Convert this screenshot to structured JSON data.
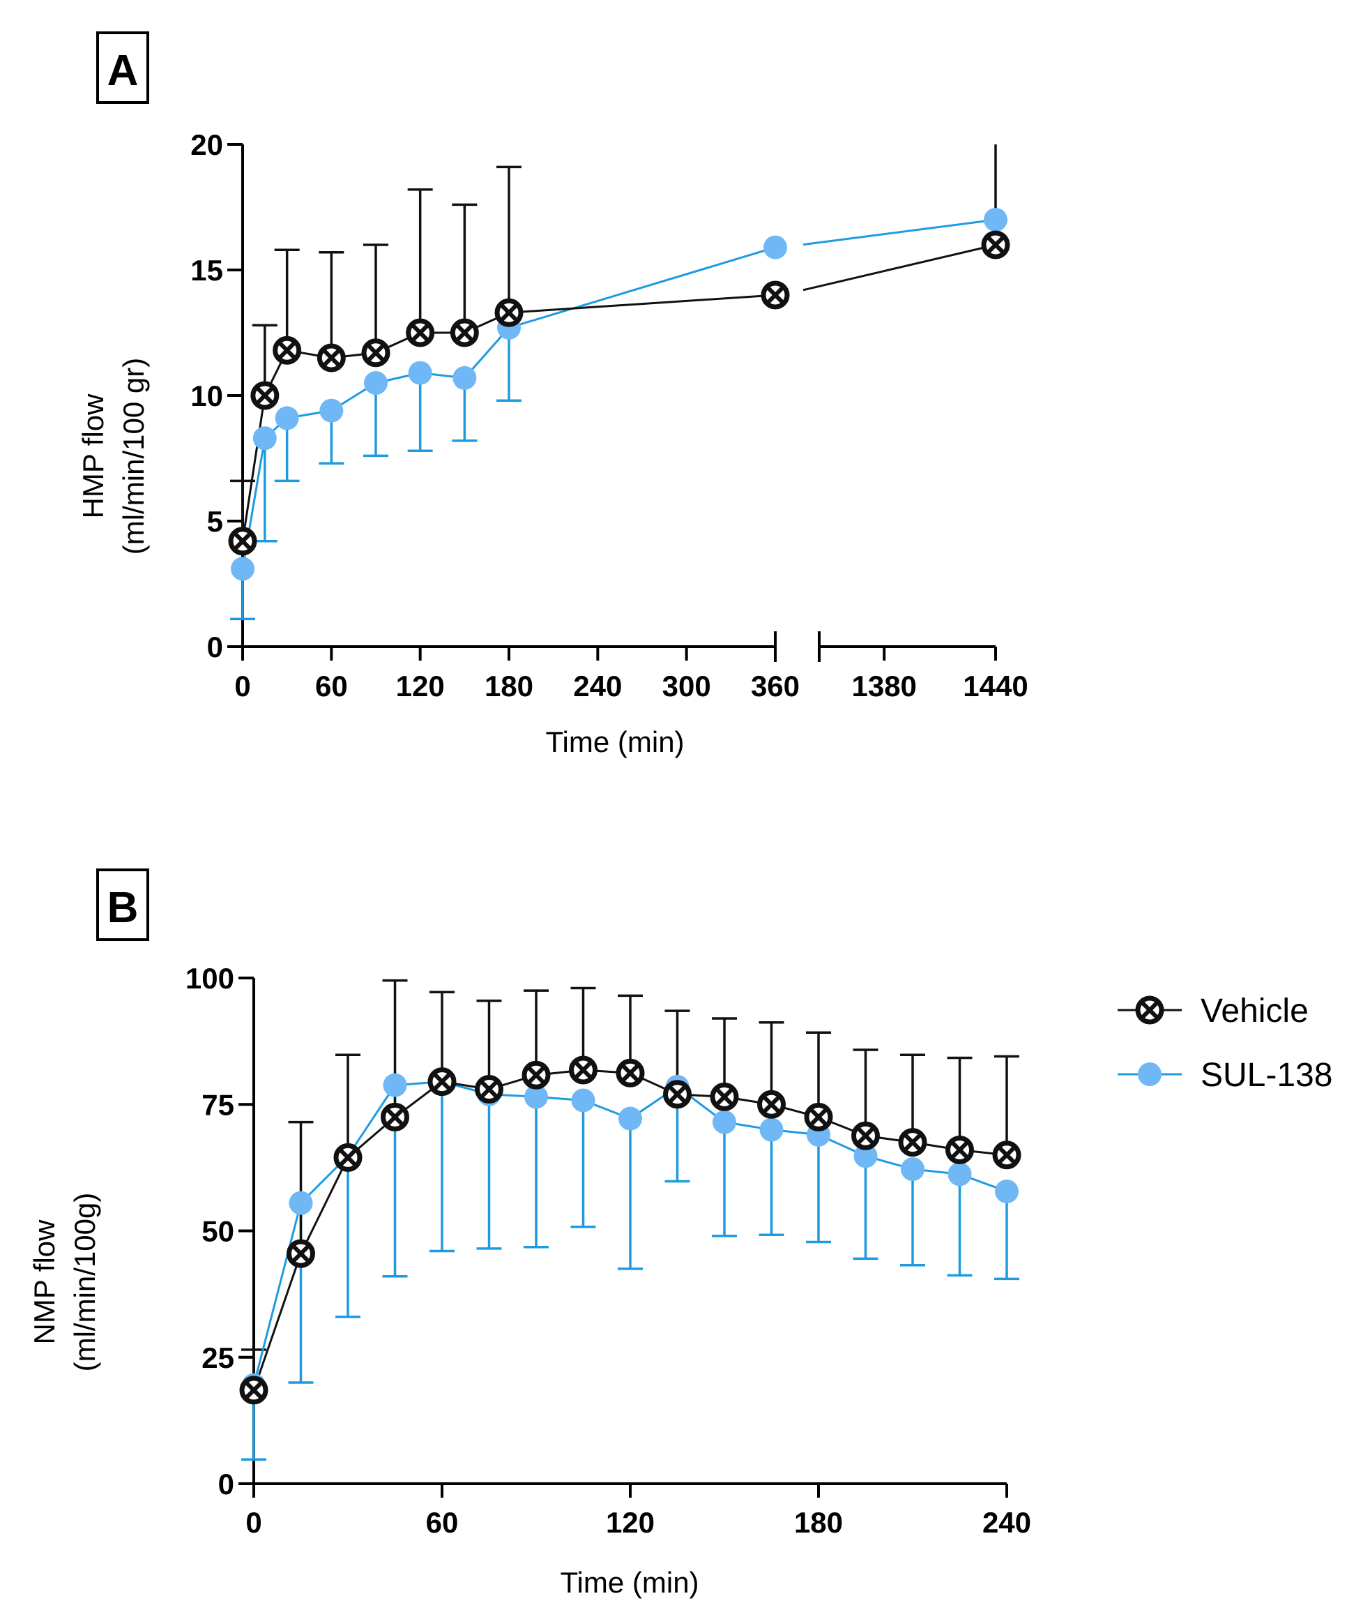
{
  "colors": {
    "vehicle": "#111111",
    "sul138": "#6fb7f5",
    "sul138_line": "#1e9be0"
  },
  "legend": {
    "items": [
      {
        "name": "Vehicle",
        "marker": "circle-x-icon"
      },
      {
        "name": "SUL-138",
        "marker": "filled-circle-icon"
      }
    ]
  },
  "chart_data": [
    {
      "panel": "A",
      "type": "line",
      "title": "",
      "xlabel": "Time (min)",
      "ylabel": [
        "HMP flow",
        "(ml/min/100 gr)"
      ],
      "ylim": [
        0,
        20
      ],
      "yticks": [
        "0",
        "5",
        "10",
        "15",
        "20"
      ],
      "x_broken_axis": {
        "segment1": [
          0,
          360
        ],
        "segment2": [
          1345,
          1440
        ]
      },
      "xticks": [
        "0",
        "60",
        "120",
        "180",
        "240",
        "300",
        "360",
        "1380",
        "1440"
      ],
      "series": [
        {
          "name": "Vehicle",
          "x": [
            0,
            15,
            30,
            60,
            90,
            120,
            150,
            180,
            360,
            1440
          ],
          "y": [
            4.2,
            10.0,
            11.8,
            11.5,
            11.7,
            12.5,
            12.5,
            13.3,
            14.0,
            16.0
          ],
          "err_upper": [
            6.6,
            12.8,
            15.8,
            15.7,
            16.0,
            18.2,
            17.6,
            19.1,
            null,
            20.5
          ]
        },
        {
          "name": "SUL-138",
          "x": [
            0,
            15,
            30,
            60,
            90,
            120,
            150,
            180,
            360,
            1440
          ],
          "y": [
            3.1,
            8.3,
            9.1,
            9.4,
            10.5,
            10.9,
            10.7,
            12.7,
            15.9,
            17.0
          ],
          "err_lower": [
            1.1,
            4.2,
            6.6,
            7.3,
            7.6,
            7.8,
            8.2,
            9.8,
            null,
            null
          ]
        }
      ]
    },
    {
      "panel": "B",
      "type": "line",
      "title": "",
      "xlabel": "Time (min)",
      "ylabel": [
        "NMP flow",
        "(ml/min/100g)"
      ],
      "xlim": [
        0,
        240
      ],
      "ylim": [
        0,
        100
      ],
      "xticks": [
        "0",
        "60",
        "120",
        "180",
        "240"
      ],
      "yticks": [
        "0",
        "25",
        "50",
        "75",
        "100"
      ],
      "series": [
        {
          "name": "Vehicle",
          "x": [
            0,
            15,
            30,
            45,
            60,
            75,
            90,
            105,
            120,
            135,
            150,
            165,
            180,
            195,
            210,
            225,
            240
          ],
          "y": [
            18.5,
            45.5,
            64.5,
            72.5,
            79.5,
            78.0,
            80.8,
            81.8,
            81.2,
            77.0,
            76.5,
            75.0,
            72.5,
            68.8,
            67.5,
            66.0,
            65.0
          ],
          "err_upper": [
            26.5,
            71.5,
            84.8,
            99.5,
            97.2,
            95.5,
            97.5,
            98.0,
            96.5,
            93.5,
            92.0,
            91.2,
            89.2,
            85.8,
            84.8,
            84.2,
            84.5
          ]
        },
        {
          "name": "SUL-138",
          "x": [
            0,
            15,
            30,
            45,
            60,
            75,
            90,
            105,
            120,
            135,
            150,
            165,
            180,
            195,
            210,
            225,
            240
          ],
          "y": [
            19.5,
            55.5,
            64.8,
            78.8,
            79.5,
            77.0,
            76.5,
            75.8,
            72.2,
            78.5,
            71.5,
            70.0,
            69.0,
            64.8,
            62.2,
            61.2,
            57.8
          ],
          "err_lower": [
            4.8,
            20.0,
            33.0,
            41.0,
            46.0,
            46.5,
            46.8,
            50.8,
            42.5,
            59.8,
            49.0,
            49.2,
            47.8,
            44.5,
            43.2,
            41.2,
            40.5
          ]
        }
      ]
    }
  ]
}
